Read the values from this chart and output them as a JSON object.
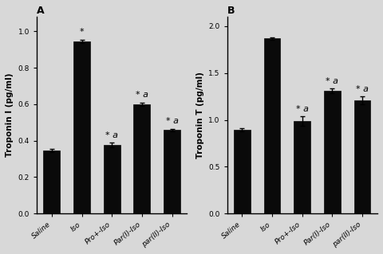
{
  "panel_A": {
    "title": "A",
    "ylabel": "Troponin I (pg/ml)",
    "categories": [
      "Saline",
      "Iso",
      "Pro+­Iso",
      "Par(I)-Iso",
      "par(II)-Iso"
    ],
    "values": [
      0.345,
      0.945,
      0.375,
      0.6,
      0.458
    ],
    "errors": [
      0.008,
      0.01,
      0.013,
      0.01,
      0.007
    ],
    "annotations": [
      "",
      "*",
      "*a",
      "*a",
      "*a"
    ],
    "ylim": [
      0.0,
      1.08
    ],
    "yticks": [
      0.0,
      0.2,
      0.4,
      0.6,
      0.8,
      1.0
    ]
  },
  "panel_B": {
    "title": "B",
    "ylabel": "Troponin T (pg/ml)",
    "categories": [
      "Saline",
      "Iso",
      "Pro+­Iso",
      "Par(I)-Iso",
      "par(II)-Iso"
    ],
    "values": [
      0.895,
      1.87,
      0.985,
      1.31,
      1.21
    ],
    "errors": [
      0.018,
      0.012,
      0.05,
      0.025,
      0.04
    ],
    "annotations": [
      "",
      "",
      "*a",
      "*a",
      "*a"
    ],
    "ylim": [
      0.0,
      2.1
    ],
    "yticks": [
      0.0,
      0.5,
      1.0,
      1.5,
      2.0
    ]
  },
  "bar_color": "#0a0a0a",
  "bar_width": 0.55,
  "tick_label_fontsize": 6.5,
  "ylabel_fontsize": 7.5,
  "title_fontsize": 9,
  "annotation_fontsize": 8,
  "background_color": "#d8d8d8"
}
